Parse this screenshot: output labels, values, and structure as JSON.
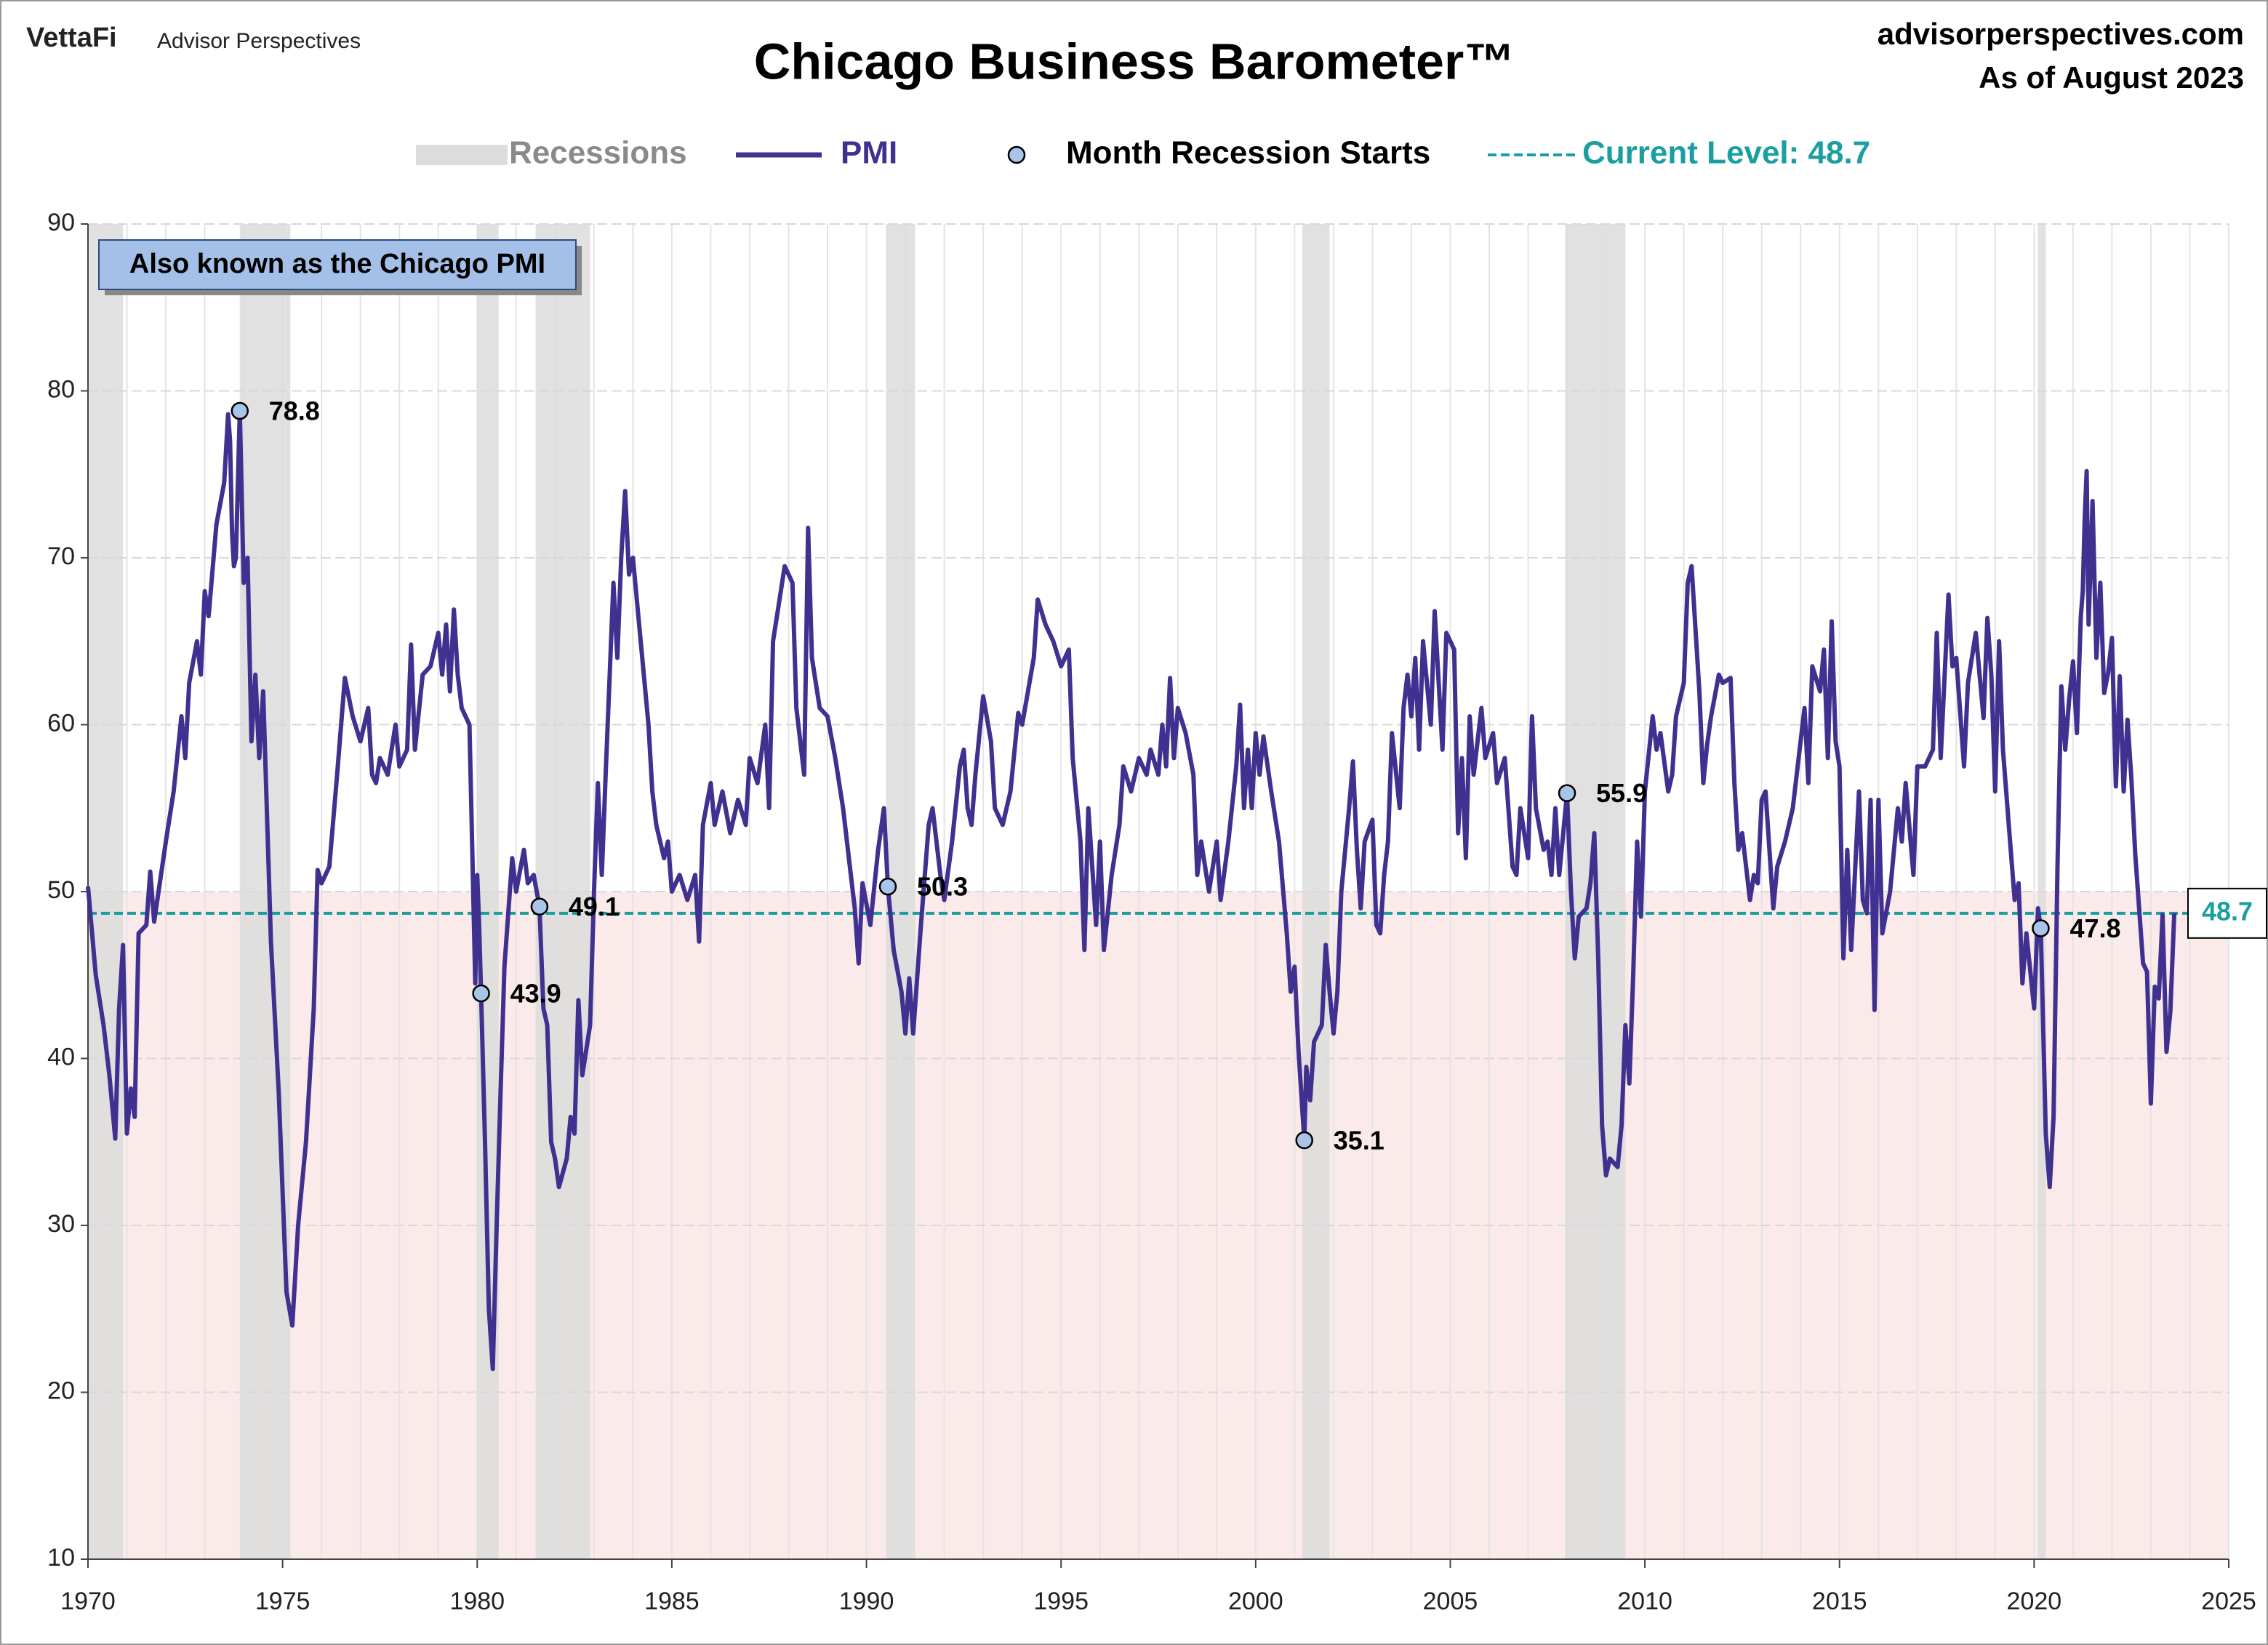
{
  "brand": "VettaFi",
  "brand_sub": "Advisor Perspectives",
  "source": "advisorperspectives.com",
  "as_of": "As of August 2023",
  "chart_data": {
    "type": "line",
    "title": "Chicago Business Barometer™",
    "annotation": "Also known as the Chicago PMI",
    "xlim": [
      1970,
      2025
    ],
    "xticks": [
      1970,
      1975,
      1980,
      1985,
      1990,
      1995,
      2000,
      2005,
      2010,
      2015,
      2020,
      2025
    ],
    "ylim": [
      10,
      90
    ],
    "yticks": [
      10,
      20,
      30,
      40,
      50,
      60,
      70,
      80,
      90
    ],
    "grid": true,
    "contraction_threshold": 50,
    "contraction_color": "#fbeaea",
    "recessions": {
      "name": "Recessions",
      "color": "#dcdcdc",
      "spans": [
        [
          1970.0,
          1970.9
        ],
        [
          1973.9,
          1975.2
        ],
        [
          1980.0,
          1980.55
        ],
        [
          1981.5,
          1982.9
        ],
        [
          1990.5,
          1991.25
        ],
        [
          2001.2,
          2001.9
        ],
        [
          2007.95,
          2009.5
        ],
        [
          2020.1,
          2020.3
        ]
      ]
    },
    "current_level": {
      "name": "Current Level: 48.7",
      "value": 48.7,
      "color": "#1a9ea0"
    },
    "recession_starts": {
      "name": "Month Recession Starts",
      "color": "#a8c4e8",
      "x": [
        1973.9,
        1980.1,
        1981.6,
        1990.55,
        2001.25,
        2008.0,
        2020.17
      ],
      "values": [
        78.8,
        43.9,
        49.1,
        50.3,
        35.1,
        55.9,
        47.8
      ]
    },
    "x": [
      1970.0,
      1970.2,
      1970.4,
      1970.55,
      1970.7,
      1970.8,
      1970.9,
      1971.0,
      1971.1,
      1971.2,
      1971.3,
      1971.5,
      1971.6,
      1971.7,
      1972.0,
      1972.2,
      1972.4,
      1972.5,
      1972.6,
      1972.8,
      1972.9,
      1973.0,
      1973.1,
      1973.3,
      1973.5,
      1973.6,
      1973.65,
      1973.7,
      1973.75,
      1973.8,
      1973.9,
      1974.0,
      1974.1,
      1974.2,
      1974.3,
      1974.4,
      1974.5,
      1974.7,
      1974.9,
      1975.1,
      1975.25,
      1975.4,
      1975.6,
      1975.8,
      1975.9,
      1976.0,
      1976.2,
      1976.4,
      1976.6,
      1976.8,
      1977.0,
      1977.2,
      1977.3,
      1977.4,
      1977.5,
      1977.7,
      1977.9,
      1978.0,
      1978.2,
      1978.3,
      1978.4,
      1978.6,
      1978.8,
      1979.0,
      1979.1,
      1979.2,
      1979.3,
      1979.4,
      1979.5,
      1979.6,
      1979.8,
      1979.95,
      1980.0,
      1980.05,
      1980.1,
      1980.2,
      1980.3,
      1980.4,
      1980.5,
      1980.6,
      1980.7,
      1980.9,
      1981.0,
      1981.2,
      1981.3,
      1981.45,
      1981.6,
      1981.7,
      1981.8,
      1981.9,
      1982.0,
      1982.1,
      1982.3,
      1982.4,
      1982.5,
      1982.6,
      1982.7,
      1982.9,
      1983.0,
      1983.1,
      1983.2,
      1983.3,
      1983.5,
      1983.6,
      1983.7,
      1983.8,
      1983.9,
      1984.0,
      1984.2,
      1984.4,
      1984.5,
      1984.6,
      1984.8,
      1984.9,
      1985.0,
      1985.2,
      1985.4,
      1985.6,
      1985.7,
      1985.8,
      1986.0,
      1986.1,
      1986.3,
      1986.5,
      1986.7,
      1986.9,
      1987.0,
      1987.2,
      1987.4,
      1987.5,
      1987.6,
      1987.8,
      1987.9,
      1988.1,
      1988.2,
      1988.4,
      1988.5,
      1988.6,
      1988.8,
      1989.0,
      1989.2,
      1989.4,
      1989.6,
      1989.7,
      1989.8,
      1989.9,
      1990.1,
      1990.3,
      1990.45,
      1990.55,
      1990.7,
      1990.9,
      1991.0,
      1991.1,
      1991.2,
      1991.4,
      1991.6,
      1991.7,
      1991.9,
      1992.0,
      1992.2,
      1992.4,
      1992.5,
      1992.6,
      1992.7,
      1992.8,
      1993.0,
      1993.2,
      1993.3,
      1993.5,
      1993.7,
      1993.9,
      1994.0,
      1994.3,
      1994.4,
      1994.6,
      1994.8,
      1995.0,
      1995.2,
      1995.3,
      1995.5,
      1995.6,
      1995.7,
      1995.9,
      1996.0,
      1996.1,
      1996.3,
      1996.5,
      1996.6,
      1996.8,
      1997.0,
      1997.2,
      1997.3,
      1997.5,
      1997.6,
      1997.7,
      1997.8,
      1997.9,
      1998.0,
      1998.2,
      1998.4,
      1998.5,
      1998.6,
      1998.8,
      1999.0,
      1999.1,
      1999.3,
      1999.5,
      1999.6,
      1999.7,
      1999.8,
      1999.9,
      2000.0,
      2000.1,
      2000.2,
      2000.4,
      2000.6,
      2000.8,
      2000.9,
      2001.0,
      2001.1,
      2001.25,
      2001.3,
      2001.4,
      2001.5,
      2001.7,
      2001.8,
      2001.9,
      2002.0,
      2002.1,
      2002.2,
      2002.4,
      2002.5,
      2002.6,
      2002.7,
      2002.8,
      2003.0,
      2003.1,
      2003.2,
      2003.3,
      2003.4,
      2003.5,
      2003.7,
      2003.8,
      2003.9,
      2004.0,
      2004.1,
      2004.2,
      2004.3,
      2004.5,
      2004.6,
      2004.8,
      2004.9,
      2005.1,
      2005.2,
      2005.3,
      2005.4,
      2005.5,
      2005.6,
      2005.8,
      2005.9,
      2006.1,
      2006.2,
      2006.4,
      2006.6,
      2006.7,
      2006.8,
      2007.0,
      2007.1,
      2007.2,
      2007.4,
      2007.5,
      2007.6,
      2007.7,
      2007.8,
      2008.0,
      2008.1,
      2008.2,
      2008.3,
      2008.5,
      2008.6,
      2008.7,
      2008.8,
      2008.9,
      2009.0,
      2009.1,
      2009.3,
      2009.4,
      2009.5,
      2009.6,
      2009.7,
      2009.8,
      2009.9,
      2010.0,
      2010.2,
      2010.3,
      2010.4,
      2010.6,
      2010.7,
      2010.8,
      2011.0,
      2011.1,
      2011.2,
      2011.4,
      2011.5,
      2011.6,
      2011.7,
      2011.9,
      2012.0,
      2012.2,
      2012.3,
      2012.4,
      2012.5,
      2012.7,
      2012.8,
      2012.9,
      2013.0,
      2013.1,
      2013.3,
      2013.4,
      2013.6,
      2013.8,
      2014.0,
      2014.1,
      2014.2,
      2014.3,
      2014.5,
      2014.6,
      2014.7,
      2014.8,
      2014.9,
      2015.0,
      2015.1,
      2015.2,
      2015.3,
      2015.5,
      2015.6,
      2015.7,
      2015.8,
      2015.9,
      2016.0,
      2016.1,
      2016.3,
      2016.5,
      2016.6,
      2016.7,
      2016.9,
      2017.0,
      2017.2,
      2017.4,
      2017.5,
      2017.6,
      2017.8,
      2017.9,
      2018.0,
      2018.2,
      2018.3,
      2018.5,
      2018.7,
      2018.8,
      2018.9,
      2019.0,
      2019.1,
      2019.2,
      2019.4,
      2019.5,
      2019.6,
      2019.7,
      2019.8,
      2020.0,
      2020.1,
      2020.17,
      2020.3,
      2020.4,
      2020.5,
      2020.6,
      2020.7,
      2020.8,
      2020.9,
      2021.0,
      2021.1,
      2021.2,
      2021.25,
      2021.3,
      2021.35,
      2021.4,
      2021.5,
      2021.6,
      2021.7,
      2021.8,
      2021.9,
      2022.0,
      2022.1,
      2022.2,
      2022.3,
      2022.4,
      2022.5,
      2022.6,
      2022.8,
      2022.9,
      2023.0,
      2023.1,
      2023.2,
      2023.3,
      2023.4,
      2023.5,
      2023.6
    ],
    "series": [
      {
        "name": "PMI",
        "color": "#40308f",
        "values": [
          50.3,
          45,
          42,
          39,
          35.2,
          43,
          46.8,
          35.5,
          38.2,
          36.5,
          47.5,
          48,
          51.2,
          48.2,
          53,
          56,
          60.5,
          58,
          62.5,
          65,
          63,
          68,
          66.5,
          72,
          74.5,
          78.6,
          77,
          71.5,
          69.5,
          70,
          78.8,
          68.5,
          70,
          59,
          63,
          58,
          62,
          47,
          38,
          26,
          24,
          30,
          35,
          43,
          51.3,
          50.5,
          51.5,
          57,
          62.8,
          60.5,
          59,
          61,
          57,
          56.5,
          58,
          57,
          60,
          57.5,
          58.5,
          64.8,
          58.5,
          63,
          63.5,
          65.5,
          63,
          66,
          62,
          66.9,
          63,
          61,
          60,
          44.5,
          51,
          48,
          43.9,
          35,
          25,
          21.4,
          30,
          38,
          45.5,
          52,
          50,
          52.5,
          50.5,
          51,
          49.1,
          43,
          42,
          35,
          34,
          32.3,
          34,
          36.5,
          35.5,
          43.5,
          39,
          42,
          50,
          56.5,
          51,
          57,
          68.5,
          64,
          70,
          74,
          69,
          70,
          65,
          60,
          56,
          54,
          52,
          53,
          50,
          51,
          49.5,
          51,
          47,
          54,
          56.5,
          54,
          56,
          53.5,
          55.5,
          54,
          58,
          56.5,
          60,
          55,
          65,
          68,
          69.5,
          68.5,
          61,
          57,
          71.8,
          64,
          61,
          60.5,
          58,
          55,
          51,
          49,
          45.7,
          50.5,
          48,
          52.5,
          55,
          50.3,
          46.5,
          44,
          41.5,
          44.8,
          41.5,
          48,
          54,
          55,
          51,
          49.5,
          53,
          57.5,
          58.5,
          55,
          54,
          57,
          61.7,
          59,
          55,
          54,
          56,
          60.7,
          60,
          64,
          67.5,
          66,
          65,
          63.5,
          64.5,
          58,
          53,
          46.5,
          55,
          48,
          53,
          46.5,
          51,
          54,
          57.5,
          56,
          58,
          57,
          58.5,
          57,
          60,
          57.5,
          62.8,
          58,
          61,
          59.5,
          57,
          51,
          53,
          50,
          53,
          49.5,
          53,
          57.5,
          61.2,
          55,
          58.5,
          55,
          59.5,
          57,
          59.3,
          56,
          53,
          47.5,
          44,
          45.5,
          40.5,
          35.1,
          39.5,
          37.5,
          41,
          42,
          46.8,
          44,
          41.5,
          44,
          50,
          55,
          57.8,
          52.5,
          49,
          53,
          54.3,
          48,
          47.5,
          51,
          53,
          59.5,
          55,
          61,
          63,
          60.5,
          64,
          58.5,
          65,
          60,
          66.8,
          58.5,
          65.5,
          64.5,
          53.5,
          58,
          52,
          60.5,
          57,
          61,
          58,
          59.5,
          56.5,
          58,
          51.5,
          51,
          55,
          52,
          60.5,
          55,
          52.5,
          53,
          51,
          55,
          51,
          55.9,
          50,
          46,
          48.5,
          49,
          50.5,
          53.5,
          46,
          36,
          33,
          34,
          33.5,
          36,
          42,
          38.5,
          45,
          53,
          48.5,
          56,
          60.5,
          58.5,
          59.5,
          56,
          57,
          60.5,
          62.5,
          68.5,
          69.5,
          62,
          56.5,
          58.8,
          60.5,
          63,
          62.5,
          62.8,
          56.5,
          52.5,
          53.5,
          49.5,
          51,
          50.5,
          55.5,
          56,
          49,
          51.5,
          53,
          55,
          59,
          61,
          56.5,
          63.5,
          62,
          64.5,
          58,
          66.2,
          59,
          57.5,
          46,
          52.5,
          46.5,
          56,
          49.5,
          48.7,
          55.5,
          42.9,
          55.5,
          47.5,
          50,
          55,
          53,
          56.5,
          51,
          57.5,
          57.5,
          58.5,
          65.5,
          58,
          67.8,
          63.5,
          64,
          57.5,
          62.5,
          65.5,
          60.4,
          66.4,
          63,
          56,
          65,
          58.5,
          52.5,
          49.5,
          50.5,
          44.5,
          47.5,
          43,
          49,
          47.8,
          35.5,
          32.3,
          36.5,
          51.5,
          62.3,
          58.5,
          61.5,
          63.8,
          59.5,
          66.5,
          68,
          72.3,
          75.2,
          66,
          73.4,
          64,
          68.5,
          61.9,
          63.1,
          65.2,
          56.3,
          62.9,
          56,
          60.3,
          56.7,
          52.2,
          45.7,
          45.2,
          37.3,
          44.3,
          43.6,
          48.6,
          40.4,
          42.8,
          48.7
        ]
      }
    ]
  }
}
